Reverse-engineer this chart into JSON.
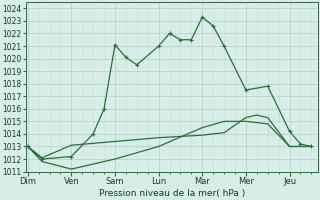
{
  "xlabel": "Pression niveau de la mer( hPa )",
  "background_color": "#d6ede8",
  "grid_color_major": "#b8ccc8",
  "grid_color_minor": "#c8ddd8",
  "line_color": "#2d6e3a",
  "ylim": [
    1011,
    1024.5
  ],
  "xlim": [
    -0.05,
    6.65
  ],
  "yticks": [
    1011,
    1012,
    1013,
    1014,
    1015,
    1016,
    1017,
    1018,
    1019,
    1020,
    1021,
    1022,
    1023,
    1024
  ],
  "xtick_positions": [
    0,
    1,
    2,
    3,
    4,
    5,
    6
  ],
  "xtick_labels": [
    "Dim",
    "Ven",
    "Sam",
    "Lun",
    "Mar",
    "Mer",
    "Jeu"
  ],
  "line1_x": [
    0,
    0.33,
    1.0,
    1.5,
    1.75,
    2.0,
    2.25,
    2.5,
    3.0,
    3.25,
    3.5,
    3.75,
    4.0,
    4.25,
    4.5,
    5.0,
    5.5,
    6.0,
    6.25,
    6.5
  ],
  "line1_y": [
    1013.0,
    1012.0,
    1012.2,
    1014.0,
    1016.0,
    1021.1,
    1020.1,
    1019.5,
    1021.0,
    1022.0,
    1021.5,
    1021.5,
    1023.3,
    1022.6,
    1021.0,
    1017.5,
    1017.8,
    1014.2,
    1013.2,
    1013.0
  ],
  "line2_x": [
    0,
    0.33,
    1.0,
    2.0,
    3.0,
    4.0,
    4.5,
    5.0,
    5.25,
    5.5,
    6.0,
    6.5
  ],
  "line2_y": [
    1013.0,
    1012.1,
    1013.1,
    1013.4,
    1013.7,
    1013.9,
    1014.1,
    1015.3,
    1015.5,
    1015.3,
    1013.0,
    1013.0
  ],
  "line3_x": [
    0,
    0.33,
    1.0,
    2.0,
    3.0,
    4.0,
    4.5,
    5.0,
    5.5,
    6.0,
    6.5
  ],
  "line3_y": [
    1013.0,
    1011.8,
    1011.2,
    1012.0,
    1013.0,
    1014.5,
    1015.0,
    1015.0,
    1014.8,
    1013.0,
    1013.0
  ],
  "ytick_fontsize": 5.5,
  "xtick_fontsize": 6.0,
  "xlabel_fontsize": 6.5,
  "linewidth": 0.9,
  "marker_size": 2.8
}
